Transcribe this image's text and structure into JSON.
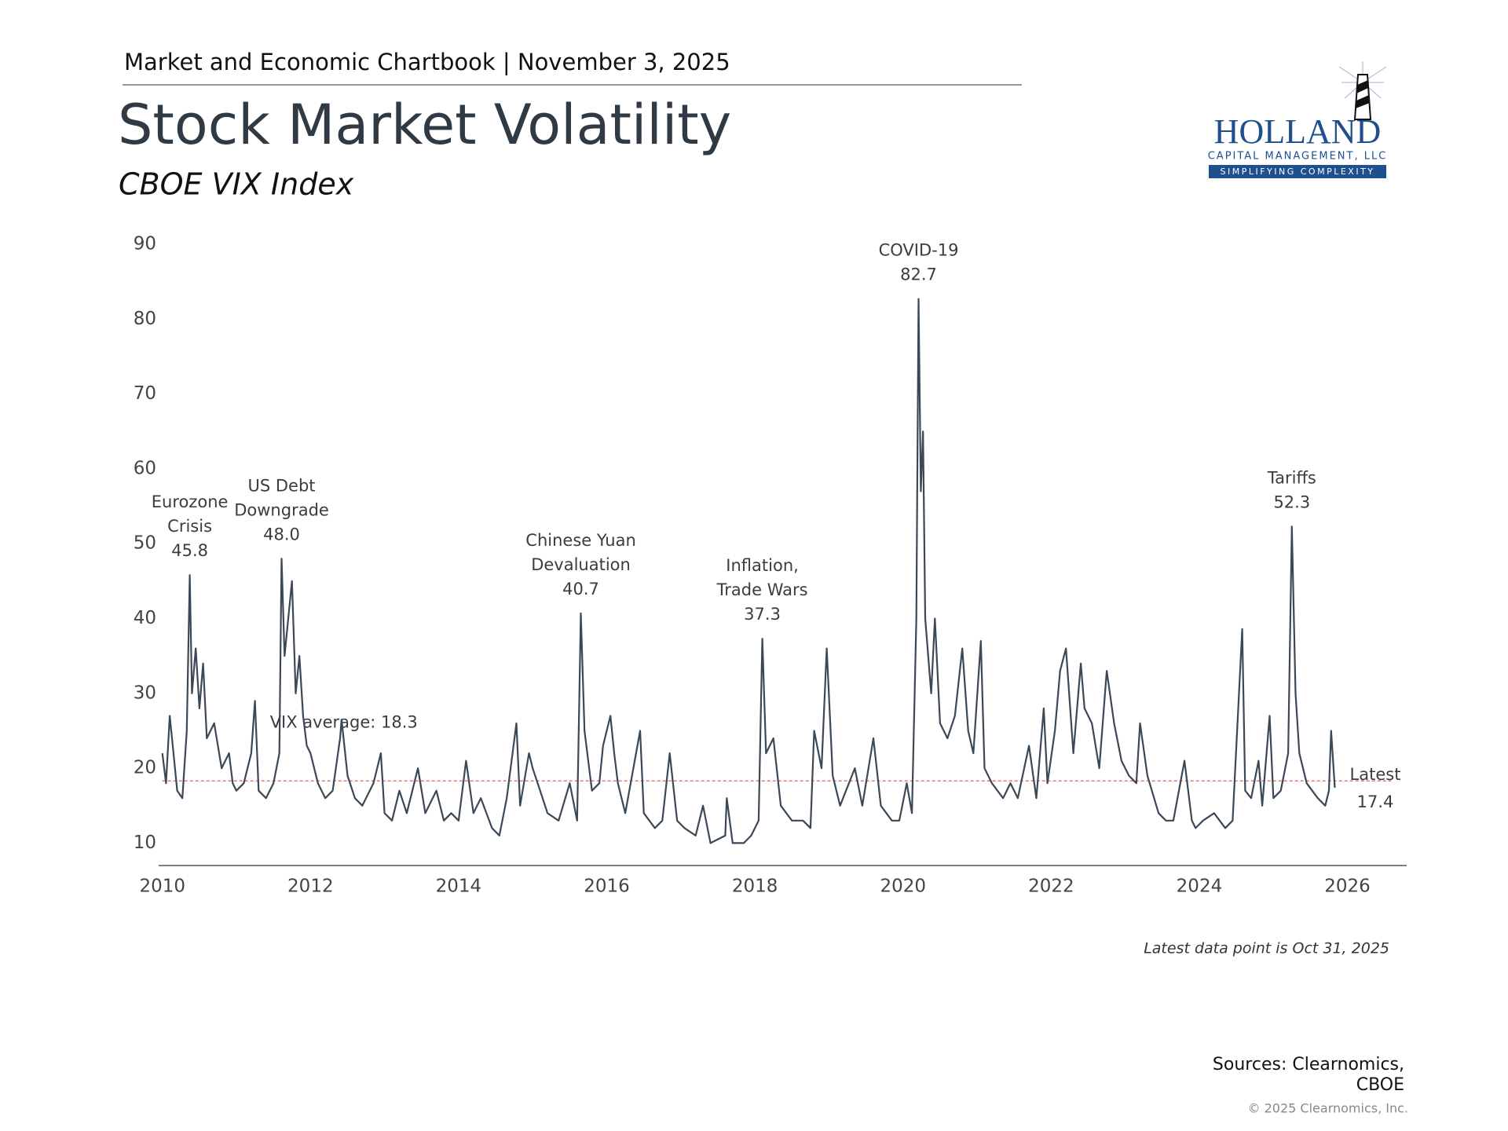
{
  "header": "Market and Economic Chartbook | November 3, 2025",
  "logo": {
    "name": "HOLLAND",
    "subname": "CAPITAL MANAGEMENT, LLC",
    "tagline": "SIMPLIFYING COMPLEXITY"
  },
  "chart_data": {
    "type": "line",
    "title": "Stock Market Volatility",
    "subtitle": "CBOE VIX Index",
    "x": [
      2010.0,
      2010.05,
      2010.1,
      2010.15,
      2010.2,
      2010.27,
      2010.33,
      2010.37,
      2010.4,
      2010.45,
      2010.5,
      2010.55,
      2010.6,
      2010.7,
      2010.8,
      2010.9,
      2010.95,
      2011.0,
      2011.1,
      2011.2,
      2011.25,
      2011.3,
      2011.4,
      2011.5,
      2011.58,
      2011.61,
      2011.65,
      2011.7,
      2011.75,
      2011.8,
      2011.85,
      2011.9,
      2011.95,
      2012.0,
      2012.1,
      2012.2,
      2012.3,
      2012.4,
      2012.42,
      2012.5,
      2012.6,
      2012.7,
      2012.85,
      2012.95,
      2013.0,
      2013.1,
      2013.2,
      2013.3,
      2013.45,
      2013.55,
      2013.7,
      2013.8,
      2013.9,
      2014.0,
      2014.1,
      2014.2,
      2014.3,
      2014.45,
      2014.55,
      2014.65,
      2014.78,
      2014.83,
      2014.95,
      2015.0,
      2015.1,
      2015.2,
      2015.35,
      2015.5,
      2015.6,
      2015.65,
      2015.7,
      2015.8,
      2015.9,
      2015.95,
      2016.05,
      2016.1,
      2016.15,
      2016.25,
      2016.45,
      2016.5,
      2016.65,
      2016.75,
      2016.85,
      2016.95,
      2017.05,
      2017.2,
      2017.3,
      2017.4,
      2017.6,
      2017.62,
      2017.7,
      2017.85,
      2017.95,
      2018.05,
      2018.1,
      2018.15,
      2018.25,
      2018.35,
      2018.5,
      2018.65,
      2018.75,
      2018.8,
      2018.9,
      2018.97,
      2019.05,
      2019.15,
      2019.35,
      2019.45,
      2019.6,
      2019.7,
      2019.85,
      2019.95,
      2020.05,
      2020.12,
      2020.18,
      2020.21,
      2020.24,
      2020.27,
      2020.3,
      2020.38,
      2020.43,
      2020.5,
      2020.6,
      2020.7,
      2020.8,
      2020.88,
      2020.95,
      2021.05,
      2021.1,
      2021.2,
      2021.35,
      2021.45,
      2021.55,
      2021.7,
      2021.8,
      2021.9,
      2021.95,
      2022.05,
      2022.12,
      2022.2,
      2022.3,
      2022.4,
      2022.45,
      2022.55,
      2022.65,
      2022.75,
      2022.85,
      2022.95,
      2023.05,
      2023.15,
      2023.2,
      2023.3,
      2023.45,
      2023.55,
      2023.65,
      2023.8,
      2023.9,
      2023.95,
      2024.05,
      2024.2,
      2024.35,
      2024.45,
      2024.58,
      2024.62,
      2024.7,
      2024.8,
      2024.85,
      2024.95,
      2025.0,
      2025.1,
      2025.2,
      2025.25,
      2025.3,
      2025.35,
      2025.45,
      2025.6,
      2025.7,
      2025.75,
      2025.78,
      2025.83
    ],
    "series": [
      {
        "color": "#3b4856",
        "values": [
          22,
          18,
          27,
          22,
          17,
          16,
          25,
          45.8,
          30,
          36,
          28,
          34,
          24,
          26,
          20,
          22,
          18,
          17,
          18,
          22,
          29,
          17,
          16,
          18,
          22,
          48,
          35,
          40,
          45,
          30,
          35,
          27,
          23,
          22,
          18,
          16,
          17,
          24,
          26.5,
          19,
          16,
          15,
          18,
          22,
          14,
          13,
          17,
          14,
          20,
          14,
          17,
          13,
          14,
          13,
          21,
          14,
          16,
          12,
          11,
          16,
          26,
          15,
          22,
          20,
          17,
          14,
          13,
          18,
          13,
          40.7,
          25,
          17,
          18,
          23,
          27,
          22,
          18,
          14,
          25,
          14,
          12,
          13,
          22,
          13,
          12,
          11,
          15,
          10,
          11,
          16,
          10,
          10,
          11,
          13,
          37.3,
          22,
          24,
          15,
          13,
          13,
          12,
          25,
          20,
          36,
          19,
          15,
          20,
          15,
          24,
          15,
          13,
          13,
          18,
          14,
          40,
          82.7,
          57,
          65,
          40,
          30,
          40,
          26,
          24,
          27,
          36,
          25,
          22,
          37,
          20,
          18,
          16,
          18,
          16,
          23,
          16,
          28,
          18,
          25,
          33,
          36,
          22,
          34,
          28,
          26,
          20,
          33,
          26,
          21,
          19,
          18,
          26,
          19,
          14,
          13,
          13,
          21,
          13,
          12,
          13,
          14,
          12,
          13,
          38.6,
          17,
          16,
          21,
          15,
          27,
          16,
          17,
          22,
          52.3,
          30,
          22,
          18,
          16,
          15,
          17,
          25,
          17.4
        ]
      }
    ],
    "xlim": [
      2009.95,
      2026.8
    ],
    "ylim": [
      7,
      90
    ],
    "xticks": [
      2010,
      2012,
      2014,
      2016,
      2018,
      2020,
      2022,
      2024,
      2026
    ],
    "yticks": [
      10,
      20,
      30,
      40,
      50,
      60,
      70,
      80,
      90
    ],
    "average": 18.3,
    "average_label": "VIX average: 18.3",
    "average_color": "#e07a7a",
    "latest_label": "Latest",
    "annotations": [
      {
        "lines": [
          "Eurozone",
          "Crisis"
        ],
        "x": 2010.37,
        "value": 45.8
      },
      {
        "lines": [
          "US Debt",
          "Downgrade"
        ],
        "x": 2011.61,
        "value": 48,
        "value_label": "48.0"
      },
      {
        "lines": [
          "Chinese Yuan",
          "Devaluation"
        ],
        "x": 2015.65,
        "value": 40.7
      },
      {
        "lines": [
          "Inflation,",
          "Trade Wars"
        ],
        "x": 2018.1,
        "value": 37.3
      },
      {
        "lines": [
          "COVID-19"
        ],
        "x": 2020.21,
        "value": 82.7
      },
      {
        "lines": [
          "Tariffs"
        ],
        "x": 2025.25,
        "value": 52.3
      }
    ],
    "note": "Latest data point is Oct 31, 2025"
  },
  "sources": [
    "Sources: Clearnomics,",
    "CBOE"
  ],
  "copyright": "© 2025 Clearnomics, Inc."
}
